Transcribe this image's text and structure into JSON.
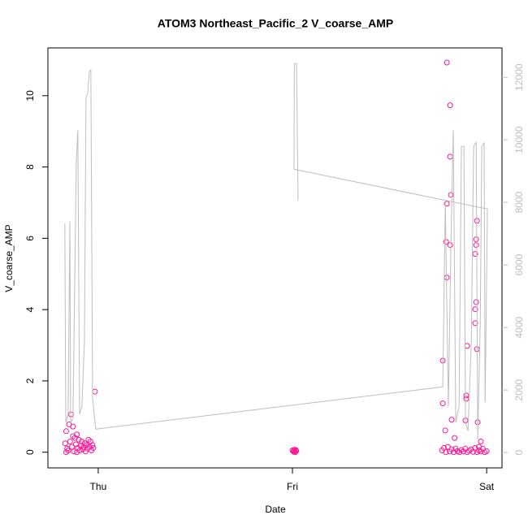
{
  "chart_data": {
    "type": "scatter",
    "title": "ATOM3 Northeast_Pacific_2 V_coarse_AMP",
    "xlabel": "Date",
    "ylabel": "V_coarse_AMP",
    "xlim": [
      -0.259,
      2.079
    ],
    "xticks": [
      {
        "value": 0,
        "label": "Thu"
      },
      {
        "value": 1,
        "label": "Fri"
      },
      {
        "value": 2,
        "label": "Sat"
      }
    ],
    "ylim": [
      -0.44,
      11.34
    ],
    "yticks": [
      0,
      2,
      4,
      6,
      8,
      10
    ],
    "y2lim": [
      -490,
      12940
    ],
    "y2ticks": [
      0,
      2000,
      4000,
      6000,
      8000,
      10000,
      12000
    ],
    "y2_color": "#bebebe",
    "series": [
      {
        "color": "#ff1493",
        "marker": "circle",
        "x": [
          -0.17,
          -0.165,
          -0.16,
          -0.155,
          -0.15,
          -0.145,
          -0.14,
          -0.135,
          -0.13,
          -0.125,
          -0.12,
          -0.115,
          -0.11,
          -0.105,
          -0.1,
          -0.095,
          -0.09,
          -0.085,
          -0.08,
          -0.075,
          -0.07,
          -0.065,
          -0.06,
          -0.055,
          -0.05,
          -0.045,
          -0.04,
          -0.035,
          -0.03,
          -0.025,
          -0.017,
          -0.165,
          -0.13,
          -0.11,
          1.0,
          1.005,
          1.01,
          1.015,
          1.02,
          1.008,
          1.012,
          1.018,
          1.795,
          1.812,
          1.812,
          1.816,
          1.795,
          1.791,
          1.812,
          1.795,
          1.774,
          1.774,
          1.787,
          1.82,
          1.95,
          1.946,
          1.946,
          1.941,
          1.946,
          1.941,
          1.941,
          1.95,
          1.9,
          1.895,
          1.895,
          1.891,
          1.954,
          1.77,
          1.78,
          1.79,
          1.8,
          1.81,
          1.82,
          1.83,
          1.84,
          1.85,
          1.86,
          1.87,
          1.88,
          1.89,
          1.9,
          1.91,
          1.92,
          1.93,
          1.94,
          1.95,
          1.96,
          1.97,
          1.98,
          1.99,
          2.0,
          1.835,
          1.96,
          1.97
        ],
        "values": [
          0.25,
          0.59,
          0.1,
          0.05,
          0.78,
          0.3,
          1.06,
          0.15,
          0.72,
          0.02,
          0.4,
          0.22,
          0.5,
          0.12,
          0.35,
          0.05,
          0.18,
          0.3,
          0.08,
          0.15,
          0.25,
          0.02,
          0.2,
          0.1,
          0.35,
          0.15,
          0.3,
          0.05,
          0.2,
          0.12,
          1.7,
          0.0,
          0.45,
          0.0,
          0.05,
          0.02,
          0.07,
          0.0,
          0.04,
          0.01,
          0.03,
          0.06,
          10.93,
          9.73,
          8.29,
          7.22,
          6.97,
          5.9,
          5.81,
          4.9,
          2.57,
          1.37,
          0.61,
          0.91,
          6.49,
          5.97,
          5.81,
          5.56,
          4.21,
          4.01,
          3.62,
          2.89,
          2.98,
          1.59,
          1.5,
          0.89,
          0.84,
          0.05,
          0.12,
          0.0,
          0.15,
          0.02,
          0.08,
          0.0,
          0.1,
          0.03,
          0.0,
          0.06,
          0.02,
          0.1,
          0.0,
          0.04,
          0.08,
          0.01,
          0.12,
          0.0,
          0.05,
          0.02,
          0.1,
          0.0,
          0.03,
          0.4,
          0.15,
          0.3
        ]
      },
      {
        "color": "#bebebe",
        "type": "line",
        "axis": "y2",
        "x": [
          -0.172,
          -0.167,
          -0.155,
          -0.146,
          -0.142,
          -0.13,
          -0.113,
          -0.105,
          -0.096,
          -0.084,
          -0.071,
          -0.063,
          -0.054,
          -0.046,
          -0.038,
          -0.029,
          -0.013,
          1.774,
          1.787,
          1.803,
          1.816,
          1.828,
          1.841,
          1.858,
          1.87,
          1.883,
          1.891,
          1.904,
          1.921,
          1.933,
          1.946,
          1.954,
          1.967,
          1.975,
          1.987,
          1.992,
          2.004,
          1.008,
          1.01,
          1.021,
          1.029
        ],
        "values": [
          7325,
          960,
          1220,
          7400,
          960,
          1090,
          9270,
          10310,
          1220,
          1480,
          3560,
          11350,
          11480,
          12180,
          12230,
          1740,
          750,
          2100,
          7970,
          1480,
          6680,
          10310,
          960,
          1480,
          9790,
          9790,
          960,
          700,
          3560,
          9790,
          9920,
          440,
          4080,
          9790,
          9900,
          1610,
          7790,
          9060,
          12440,
          12440,
          8050
        ]
      }
    ]
  }
}
